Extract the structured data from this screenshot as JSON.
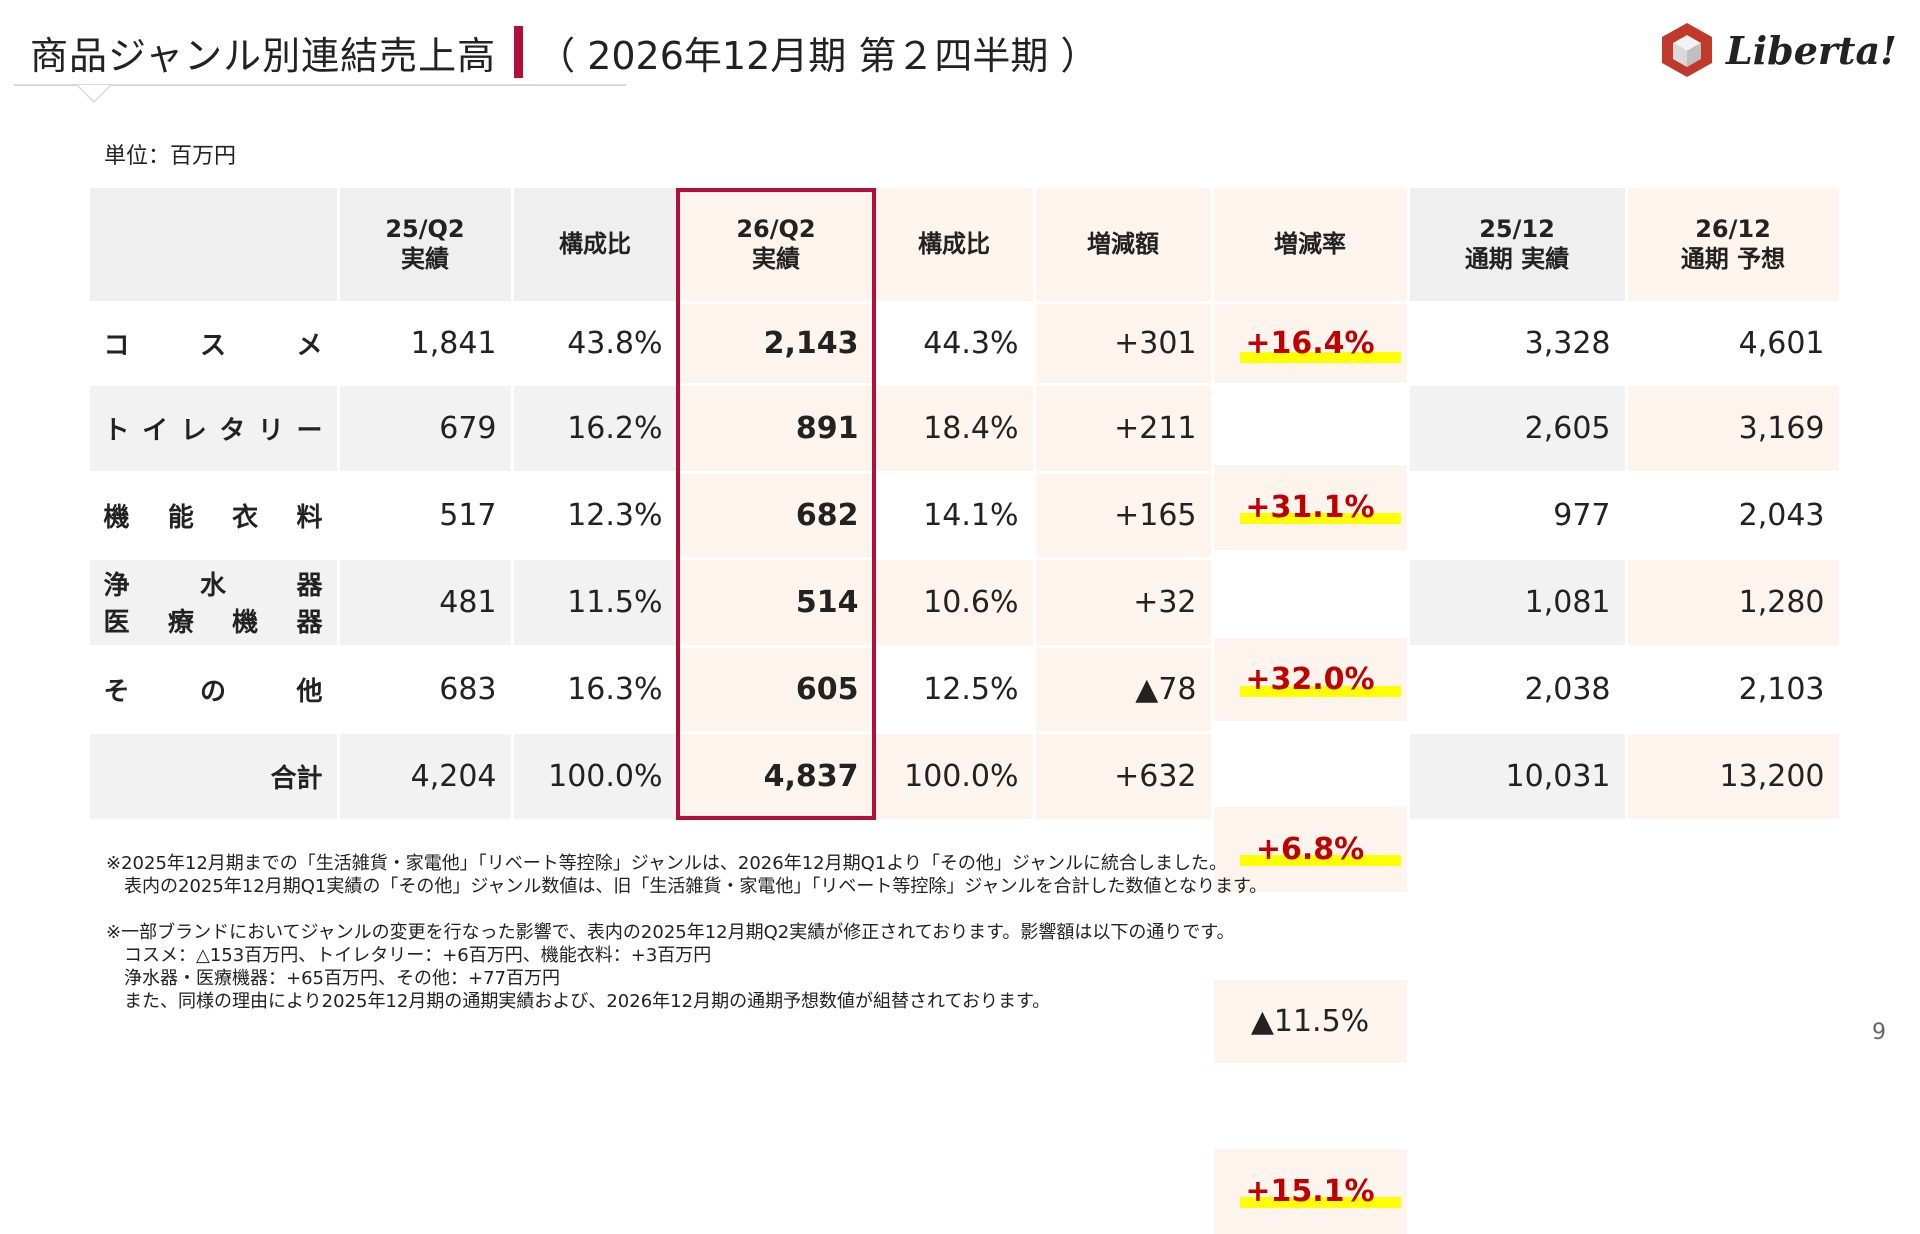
{
  "title": {
    "main": "商品ジャンル別連結売上高",
    "sub": "（ 2026年12月期 第２四半期 ）"
  },
  "logo": {
    "text": "Liberta!",
    "icon": "cube-logo-icon",
    "color": "#c0392b"
  },
  "unit_label": "単位：百万円",
  "table": {
    "headers": [
      {
        "line1": "25/Q2",
        "line2": "実績"
      },
      {
        "line1": "構成比",
        "line2": ""
      },
      {
        "line1": "26/Q2",
        "line2": "実績"
      },
      {
        "line1": "構成比",
        "line2": ""
      },
      {
        "line1": "増減額",
        "line2": ""
      },
      {
        "line1": "増減率",
        "line2": ""
      },
      {
        "line1": "25/12",
        "line2": "通期 実績"
      },
      {
        "line1": "26/12",
        "line2": "通期 予想"
      }
    ],
    "rows": [
      {
        "genre_chars": [
          "コ",
          "ス",
          "メ"
        ],
        "genre_chars2": [],
        "q2_25": "1,841",
        "ratio_25": "43.8%",
        "q2_26": "2,143",
        "ratio_26": "44.3%",
        "diff": "+301",
        "rate": "+16.4%",
        "fy25": "3,328",
        "fy26": "4,601"
      },
      {
        "genre_chars": [
          "ト",
          "イ",
          "レ",
          "タ",
          "リ",
          "ー"
        ],
        "genre_chars2": [],
        "q2_25": "679",
        "ratio_25": "16.2%",
        "q2_26": "891",
        "ratio_26": "18.4%",
        "diff": "+211",
        "rate": "+31.1%",
        "fy25": "2,605",
        "fy26": "3,169"
      },
      {
        "genre_chars": [
          "機",
          "能",
          "衣",
          "料"
        ],
        "genre_chars2": [],
        "q2_25": "517",
        "ratio_25": "12.3%",
        "q2_26": "682",
        "ratio_26": "14.1%",
        "diff": "+165",
        "rate": "+32.0%",
        "fy25": "977",
        "fy26": "2,043"
      },
      {
        "genre_chars": [
          "浄",
          "水",
          "器"
        ],
        "genre_chars2": [
          "医",
          "療",
          "機",
          "器"
        ],
        "q2_25": "481",
        "ratio_25": "11.5%",
        "q2_26": "514",
        "ratio_26": "10.6%",
        "diff": "+32",
        "rate": "+6.8%",
        "fy25": "1,081",
        "fy26": "1,280"
      },
      {
        "genre_chars": [
          "そ",
          "の",
          "他"
        ],
        "genre_chars2": [],
        "q2_25": "683",
        "ratio_25": "16.3%",
        "q2_26": "605",
        "ratio_26": "12.5%",
        "diff": "▲78",
        "rate": "▲11.5%",
        "fy25": "2,038",
        "fy26": "2,103"
      }
    ],
    "total": {
      "label": "合計",
      "q2_25": "4,204",
      "ratio_25": "100.0%",
      "q2_26": "4,837",
      "ratio_26": "100.0%",
      "diff": "+632",
      "rate": "+15.1%",
      "fy25": "10,031",
      "fy26": "13,200"
    }
  },
  "notes": [
    "※2025年12月期までの「生活雑貨・家電他」「リベート等控除」ジャンルは、2026年12月期Q1より「その他」ジャンルに統合しました。",
    "　表内の2025年12月期Q1実績の「その他」ジャンル数値は、旧「生活雑貨・家電他」「リベート等控除」ジャンルを合計した数値となります。",
    "",
    "※一部ブランドにおいてジャンルの変更を行なった影響で、表内の2025年12月期Q2実績が修正されております。影響額は以下の通りです。",
    "　コスメ：△153百万円、トイレタリー：+6百万円、機能衣料：+3百万円",
    "　浄水器・医療機器：+65百万円、その他：+77百万円",
    "　また、同様の理由により2025年12月期の通期実績および、2026年12月期の通期予想数値が組替されております。"
  ],
  "page_number": "9",
  "colors": {
    "accent": "#b0103a",
    "rate_text": "#c00000",
    "rate_highlight": "#ffff00",
    "header_gray": "#efefef",
    "row_white": "#ffffff",
    "row_tint": "#fdf4ee",
    "row_gray": "#f2f2f2"
  }
}
